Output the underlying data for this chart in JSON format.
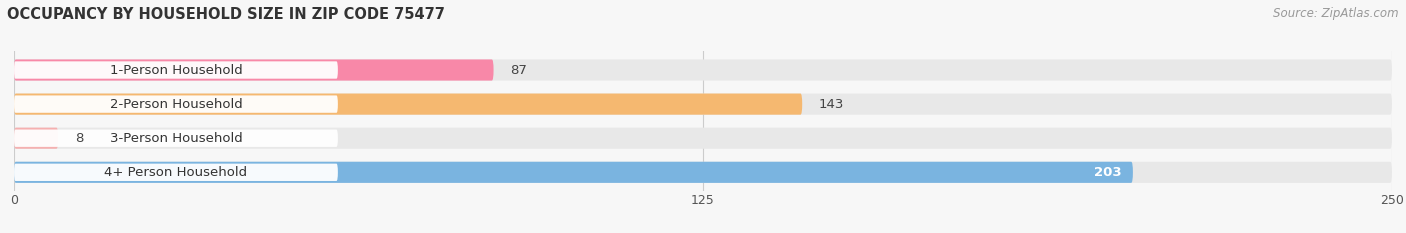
{
  "title": "OCCUPANCY BY HOUSEHOLD SIZE IN ZIP CODE 75477",
  "source": "Source: ZipAtlas.com",
  "categories": [
    "1-Person Household",
    "2-Person Household",
    "3-Person Household",
    "4+ Person Household"
  ],
  "values": [
    87,
    143,
    8,
    203
  ],
  "bar_colors": [
    "#f888a8",
    "#f5b870",
    "#f5b0b0",
    "#7ab4e0"
  ],
  "background_bar_color": "#e8e8e8",
  "label_box_color": "#ffffff",
  "xlim": [
    0,
    250
  ],
  "xticks": [
    0,
    125,
    250
  ],
  "bar_height": 0.62,
  "title_fontsize": 10.5,
  "label_fontsize": 9.5,
  "tick_fontsize": 9,
  "source_fontsize": 8.5,
  "value_inside_threshold": 150,
  "bg_color": "#f7f7f7"
}
